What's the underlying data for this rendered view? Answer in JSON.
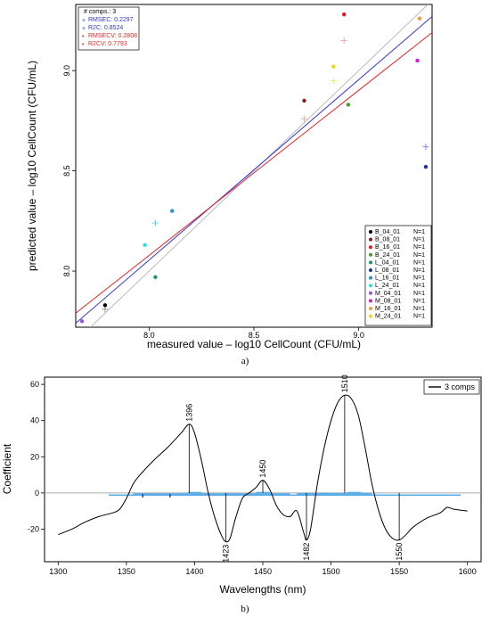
{
  "chart_data": [
    {
      "type": "scatter",
      "caption": "a)",
      "xlabel": "measured value – log10 CellCount (CFU/mL)",
      "ylabel": "predicted value – log10 CellCount (CFU/mL)",
      "xlim": [
        7.65,
        9.35
      ],
      "ylim": [
        7.72,
        9.33
      ],
      "xticks": [
        "8.0",
        "8.5",
        "9.0"
      ],
      "yticks": [
        "8.0",
        "8.5",
        "9.0"
      ],
      "grid": false,
      "stats": [
        {
          "text": "# comps.: 3",
          "color": "#000000",
          "marker": ""
        },
        {
          "text": "RMSEC: 0.2297",
          "color": "#3333dd",
          "marker": "+"
        },
        {
          "text": "R2C: 0.8524",
          "color": "#3333dd",
          "marker": "+"
        },
        {
          "text": "RMSECV: 0.2808",
          "color": "#ee2222",
          "marker": "•"
        },
        {
          "text": "R2CV: 0.7793",
          "color": "#ee2222",
          "marker": "•"
        }
      ],
      "stats_placement": "top-left",
      "legend_placement": "bottom-right",
      "legend": [
        {
          "name": "B_04_01",
          "n": "N=1",
          "color": "#000000"
        },
        {
          "name": "B_08_01",
          "n": "N=1",
          "color": "#8b1a1a"
        },
        {
          "name": "B_16_01",
          "n": "N=1",
          "color": "#e8191e"
        },
        {
          "name": "B_24_01",
          "n": "N=1",
          "color": "#4a9a2a"
        },
        {
          "name": "L_04_01",
          "n": "N=1",
          "color": "#1a9a60"
        },
        {
          "name": "L_08_01",
          "n": "N=1",
          "color": "#1a2fb0"
        },
        {
          "name": "L_16_01",
          "n": "N=1",
          "color": "#2a8fdf"
        },
        {
          "name": "L_24_01",
          "n": "N=1",
          "color": "#2ae0e8"
        },
        {
          "name": "M_04_01",
          "n": "N=1",
          "color": "#9a55e0"
        },
        {
          "name": "M_08_01",
          "n": "N=1",
          "color": "#d81ad8"
        },
        {
          "name": "M_16_01",
          "n": "N=1",
          "color": "#f59a40"
        },
        {
          "name": "M_24_01",
          "n": "N=1",
          "color": "#f2d41a"
        }
      ],
      "points_cv": [
        {
          "x": 7.79,
          "y": 7.83,
          "color": "#000000"
        },
        {
          "x": 8.74,
          "y": 8.85,
          "color": "#8b1a1a"
        },
        {
          "x": 8.93,
          "y": 9.28,
          "color": "#e8191e"
        },
        {
          "x": 8.95,
          "y": 8.83,
          "color": "#4a9a2a"
        },
        {
          "x": 8.03,
          "y": 7.97,
          "color": "#1a9a60"
        },
        {
          "x": 9.32,
          "y": 8.52,
          "color": "#1a2fb0"
        },
        {
          "x": 8.11,
          "y": 8.3,
          "color": "#2a8fdf"
        },
        {
          "x": 7.98,
          "y": 8.13,
          "color": "#2ae0e8"
        },
        {
          "x": 7.68,
          "y": 7.75,
          "color": "#9a55e0"
        },
        {
          "x": 9.28,
          "y": 9.05,
          "color": "#d81ad8"
        },
        {
          "x": 9.29,
          "y": 9.26,
          "color": "#f59a40"
        },
        {
          "x": 8.88,
          "y": 9.02,
          "color": "#f2d41a"
        }
      ],
      "points_c": [
        {
          "x": 7.79,
          "y": 7.81,
          "color": "#888888"
        },
        {
          "x": 8.74,
          "y": 8.76,
          "color": "#f0a0a0"
        },
        {
          "x": 8.93,
          "y": 9.15,
          "color": "#f0a0a0"
        },
        {
          "x": 8.03,
          "y": 8.24,
          "color": "#40d0e8"
        },
        {
          "x": 9.32,
          "y": 8.62,
          "color": "#7a7ae8"
        },
        {
          "x": 8.88,
          "y": 8.95,
          "color": "#f7e070"
        }
      ],
      "lines": [
        {
          "name": "ideal",
          "x": [
            7.65,
            9.35
          ],
          "y": [
            7.65,
            9.35
          ],
          "color": "#bbbbbb"
        },
        {
          "name": "calibration",
          "x": [
            7.65,
            9.35
          ],
          "y": [
            7.74,
            9.27
          ],
          "color": "#3333dd"
        },
        {
          "name": "cross-validation",
          "x": [
            7.65,
            9.35
          ],
          "y": [
            7.79,
            9.19
          ],
          "color": "#ee2222"
        }
      ]
    },
    {
      "type": "line",
      "caption": "b)",
      "xlabel": "Wavelengths (nm)",
      "ylabel": "Coefficient",
      "xlim": [
        1290,
        1610
      ],
      "ylim": [
        -38,
        64
      ],
      "xticks": [
        1300,
        1350,
        1400,
        1450,
        1500,
        1550,
        1600
      ],
      "yticks": [
        -20,
        0,
        20,
        40,
        60
      ],
      "legend_placement": "top-right",
      "series": [
        {
          "name": "3 comps",
          "color": "#000000",
          "x": [
            1300,
            1310,
            1320,
            1330,
            1340,
            1345,
            1350,
            1355,
            1360,
            1370,
            1380,
            1390,
            1396,
            1400,
            1405,
            1410,
            1415,
            1420,
            1423,
            1426,
            1430,
            1435,
            1440,
            1445,
            1450,
            1455,
            1460,
            1465,
            1470,
            1475,
            1480,
            1482,
            1485,
            1490,
            1495,
            1500,
            1505,
            1510,
            1515,
            1520,
            1525,
            1530,
            1535,
            1540,
            1545,
            1550,
            1555,
            1560,
            1570,
            1580,
            1585,
            1590,
            1600
          ],
          "y": [
            -23,
            -20,
            -16,
            -13,
            -11,
            -9,
            -3,
            5,
            10,
            18,
            25,
            33,
            38,
            33,
            18,
            0,
            -14,
            -24,
            -27,
            -25,
            -14,
            -3,
            0,
            3,
            7,
            2,
            -7,
            -12,
            -13,
            -10,
            -22,
            -26,
            -20,
            5,
            25,
            40,
            50,
            54,
            52,
            43,
            25,
            5,
            -10,
            -20,
            -25,
            -26,
            -23,
            -19,
            -14,
            -11,
            -8,
            -9,
            -10
          ]
        }
      ],
      "peaks": [
        {
          "x": 1396,
          "y": 38,
          "label": "1396"
        },
        {
          "x": 1423,
          "y": -27,
          "label": "1423"
        },
        {
          "x": 1450,
          "y": 7,
          "label": "1450"
        },
        {
          "x": 1482,
          "y": -26,
          "label": "1482"
        },
        {
          "x": 1510,
          "y": 54,
          "label": "1510"
        },
        {
          "x": 1550,
          "y": -26,
          "label": "1550"
        }
      ],
      "band_segments": [
        {
          "x1": 1337,
          "x2": 1595,
          "y": -1.2
        },
        {
          "x1": 1355,
          "x2": 1420,
          "y": -0.6
        },
        {
          "x1": 1420,
          "x2": 1470,
          "y": -0.6
        },
        {
          "x1": 1475,
          "x2": 1530,
          "y": -0.4
        },
        {
          "x1": 1395,
          "x2": 1405,
          "y": 0.2
        },
        {
          "x1": 1445,
          "x2": 1455,
          "y": 0.2
        },
        {
          "x1": 1512,
          "x2": 1522,
          "y": 0.2
        }
      ],
      "band_marks": [
        {
          "x": 1362,
          "y": -1.5
        },
        {
          "x": 1382,
          "y": -1.5
        }
      ]
    }
  ]
}
